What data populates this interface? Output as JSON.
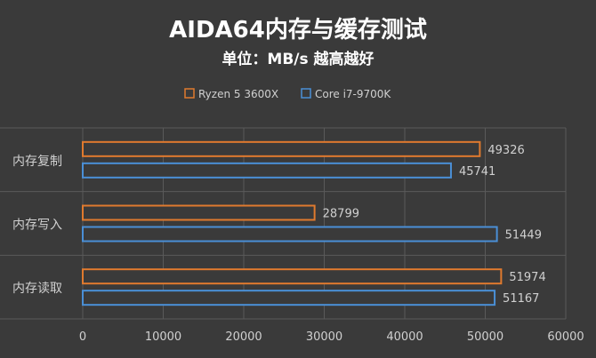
{
  "chart_data": {
    "type": "bar",
    "orientation": "horizontal",
    "title": "AIDA64内存与缓存测试",
    "subtitle": "单位：MB/s 越高越好",
    "categories": [
      "内存复制",
      "内存写入",
      "内存读取"
    ],
    "series": [
      {
        "name": "Ryzen 5 3600X",
        "values": [
          49326,
          28799,
          51974
        ],
        "color": "#e07a2e"
      },
      {
        "name": "Core i7-9700K",
        "values": [
          45741,
          51449,
          51167
        ],
        "color": "#4a8fd6"
      }
    ],
    "xlim": [
      0,
      60000
    ],
    "xticks": [
      0,
      10000,
      20000,
      30000,
      40000,
      50000,
      60000
    ],
    "tick_labels": [
      "0",
      "10000",
      "20000",
      "30000",
      "40000",
      "50000",
      "60000"
    ],
    "value_labels": [
      [
        "49326",
        "28799",
        "51974"
      ],
      [
        "45741",
        "51449",
        "51167"
      ]
    ],
    "legend_position": "top",
    "grid": "vertical",
    "bar_fill": "#3a3a3a",
    "grid_color": "#5a5a5a",
    "background": "#3a3a3a"
  }
}
